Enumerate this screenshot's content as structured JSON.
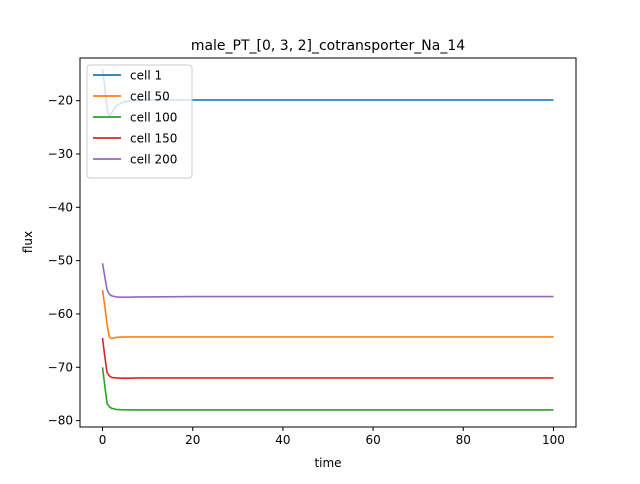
{
  "chart_data": {
    "type": "line",
    "title": "male_PT_[0, 3, 2]_cotransporter_Na_14",
    "xlabel": "time",
    "ylabel": "flux",
    "xlim": [
      -5,
      105
    ],
    "ylim": [
      -81.2,
      -12
    ],
    "xticks": [
      0,
      20,
      40,
      60,
      80,
      100
    ],
    "yticks": [
      -80,
      -70,
      -60,
      -50,
      -40,
      -30,
      -20
    ],
    "grid": false,
    "legend_position": "top-left",
    "series": [
      {
        "name": "cell 1",
        "color": "#1f77b4",
        "x": [
          0,
          0.5,
          1,
          1.5,
          2,
          3,
          4,
          5,
          6,
          8,
          10,
          15,
          20,
          30,
          40,
          50,
          60,
          70,
          80,
          90,
          100
        ],
        "y": [
          -14.0,
          -17.5,
          -21.5,
          -23.0,
          -22.3,
          -21.0,
          -20.5,
          -20.2,
          -20.0,
          -19.9,
          -19.85,
          -19.85,
          -19.85,
          -19.85,
          -19.85,
          -19.85,
          -19.85,
          -19.85,
          -19.85,
          -19.85,
          -19.85
        ]
      },
      {
        "name": "cell 50",
        "color": "#ff7f0e",
        "x": [
          0,
          0.5,
          1,
          1.5,
          2,
          3,
          4,
          6,
          8,
          10,
          20,
          30,
          40,
          50,
          60,
          70,
          80,
          90,
          100
        ],
        "y": [
          -55.5,
          -58.5,
          -62.0,
          -64.3,
          -64.6,
          -64.4,
          -64.35,
          -64.3,
          -64.3,
          -64.3,
          -64.3,
          -64.3,
          -64.3,
          -64.3,
          -64.3,
          -64.3,
          -64.3,
          -64.3,
          -64.3
        ]
      },
      {
        "name": "cell 100",
        "color": "#2ca02c",
        "x": [
          0,
          0.5,
          1,
          1.5,
          2,
          3,
          4,
          6,
          8,
          10,
          20,
          30,
          40,
          50,
          60,
          70,
          80,
          90,
          100
        ],
        "y": [
          -70.0,
          -73.5,
          -76.8,
          -77.4,
          -77.7,
          -77.9,
          -77.95,
          -78.0,
          -78.0,
          -78.0,
          -78.0,
          -78.0,
          -78.0,
          -78.0,
          -78.0,
          -78.0,
          -78.0,
          -78.0,
          -78.0
        ]
      },
      {
        "name": "cell 150",
        "color": "#d62728",
        "x": [
          0,
          0.5,
          1,
          1.5,
          2,
          3,
          4,
          6,
          8,
          10,
          20,
          30,
          40,
          50,
          60,
          70,
          80,
          90,
          100
        ],
        "y": [
          -64.5,
          -68.0,
          -71.0,
          -71.6,
          -71.9,
          -72.0,
          -72.05,
          -72.05,
          -72.0,
          -72.0,
          -72.0,
          -72.0,
          -72.0,
          -72.0,
          -72.0,
          -72.0,
          -72.0,
          -72.0,
          -72.0
        ]
      },
      {
        "name": "cell 200",
        "color": "#9467bd",
        "x": [
          0,
          0.5,
          1,
          1.5,
          2,
          3,
          4,
          6,
          8,
          10,
          20,
          30,
          40,
          50,
          60,
          70,
          80,
          90,
          100
        ],
        "y": [
          -50.5,
          -53.0,
          -55.5,
          -56.3,
          -56.6,
          -56.8,
          -56.85,
          -56.85,
          -56.8,
          -56.8,
          -56.75,
          -56.75,
          -56.75,
          -56.75,
          -56.75,
          -56.75,
          -56.75,
          -56.75,
          -56.75
        ]
      }
    ]
  }
}
